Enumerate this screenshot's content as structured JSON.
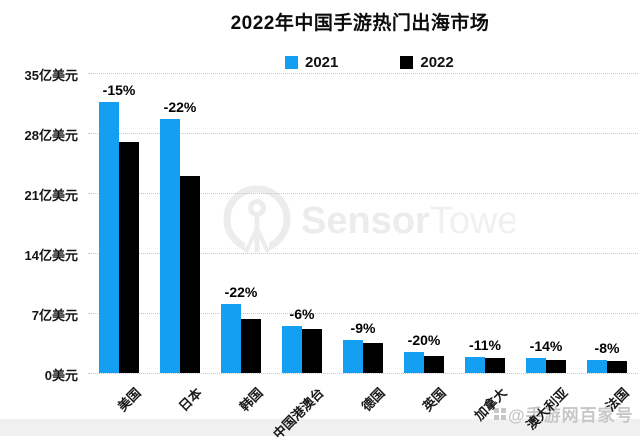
{
  "title": "2022年中国手游热门出海市场",
  "brand_watermark": {
    "bold_part": "Sensor",
    "light_part": "Tower"
  },
  "source_watermark": {
    "text": "@手游网百家号"
  },
  "colors": {
    "series_2021": "#14a0f2",
    "series_2022": "#000000",
    "grid": "#c9c9c9",
    "brand_gray": "#ececec",
    "source_gray": "#c7c7c7"
  },
  "chart_data": {
    "type": "bar",
    "title": "2022年中国手游热门出海市场",
    "categories": [
      "美国",
      "日本",
      "韩国",
      "中国港澳台",
      "德国",
      "英国",
      "加拿大",
      "澳大利亚",
      "法国"
    ],
    "series": [
      {
        "name": "2021",
        "color": "#14a0f2",
        "values": [
          31.6,
          29.6,
          8.1,
          5.5,
          3.9,
          2.5,
          1.9,
          1.8,
          1.5
        ]
      },
      {
        "name": "2022",
        "color": "#000000",
        "values": [
          27.0,
          23.0,
          6.3,
          5.1,
          3.5,
          2.0,
          1.7,
          1.55,
          1.4
        ]
      }
    ],
    "bar_labels": [
      "-15%",
      "-22%",
      "-22%",
      "-6%",
      "-9%",
      "-20%",
      "-11%",
      "-14%",
      "-8%"
    ],
    "xlabel": "",
    "ylabel": "",
    "y_ticks": [
      {
        "value": 0,
        "label": "0美元"
      },
      {
        "value": 7,
        "label": "7亿美元"
      },
      {
        "value": 14,
        "label": "14亿美元"
      },
      {
        "value": 21,
        "label": "21亿美元"
      },
      {
        "value": 28,
        "label": "28亿美元"
      },
      {
        "value": 35,
        "label": "35亿美元"
      }
    ],
    "ylim": [
      0,
      35
    ],
    "grid": "horizontal-dotted",
    "legend_position": "top-center"
  }
}
